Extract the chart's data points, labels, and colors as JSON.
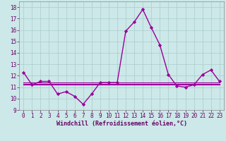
{
  "x": [
    0,
    1,
    2,
    3,
    4,
    5,
    6,
    7,
    8,
    9,
    10,
    11,
    12,
    13,
    14,
    15,
    16,
    17,
    18,
    19,
    20,
    21,
    22,
    23
  ],
  "y_main": [
    12.3,
    11.2,
    11.5,
    11.5,
    10.4,
    10.6,
    10.2,
    9.5,
    10.4,
    11.4,
    11.4,
    11.4,
    15.9,
    16.7,
    17.8,
    16.2,
    14.7,
    12.1,
    11.1,
    11.0,
    11.2,
    12.1,
    12.5,
    11.5
  ],
  "y_flat1": [
    11.4,
    11.4,
    11.4,
    11.4,
    11.4,
    11.4,
    11.4,
    11.4,
    11.4,
    11.4,
    11.4,
    11.4,
    11.4,
    11.4,
    11.4,
    11.4,
    11.4,
    11.4,
    11.4,
    11.4,
    11.4,
    11.4,
    11.4,
    11.4
  ],
  "y_flat2": [
    11.3,
    11.3,
    11.3,
    11.3,
    11.3,
    11.3,
    11.3,
    11.3,
    11.3,
    11.3,
    11.3,
    11.3,
    11.3,
    11.3,
    11.3,
    11.3,
    11.3,
    11.3,
    11.3,
    11.3,
    11.3,
    11.3,
    11.3,
    11.3
  ],
  "y_flat3": [
    11.2,
    11.2,
    11.2,
    11.2,
    11.2,
    11.2,
    11.2,
    11.2,
    11.2,
    11.2,
    11.2,
    11.2,
    11.2,
    11.2,
    11.2,
    11.2,
    11.2,
    11.2,
    11.2,
    11.2,
    11.2,
    11.2,
    11.2,
    11.2
  ],
  "line_color": "#990099",
  "bg_color": "#cce8e8",
  "grid_color": "#aacccc",
  "xlabel": "Windchill (Refroidissement éolien,°C)",
  "ylim": [
    9,
    18.5
  ],
  "xlim": [
    -0.5,
    23.5
  ],
  "yticks": [
    9,
    10,
    11,
    12,
    13,
    14,
    15,
    16,
    17,
    18
  ],
  "xticks": [
    0,
    1,
    2,
    3,
    4,
    5,
    6,
    7,
    8,
    9,
    10,
    11,
    12,
    13,
    14,
    15,
    16,
    17,
    18,
    19,
    20,
    21,
    22,
    23
  ],
  "marker": "D",
  "markersize": 2.2,
  "linewidth": 1.0,
  "tick_labelsize": 5.5,
  "xlabel_fontsize": 6.0
}
